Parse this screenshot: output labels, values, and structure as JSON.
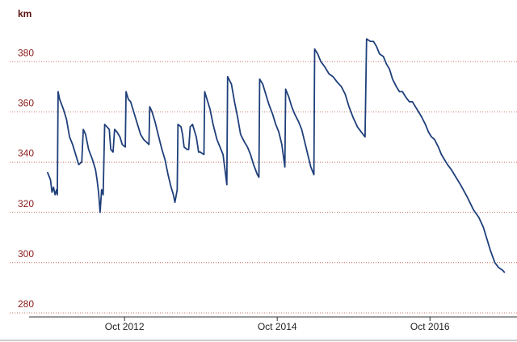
{
  "chart_data": {
    "type": "line",
    "y_label": "km",
    "color": "#1f3f7a",
    "grid": true,
    "xlim": [
      2011.5,
      2017.89
    ],
    "ylim": [
      280,
      390
    ],
    "xticks": [
      {
        "value": 2012.75,
        "label": "Oct 2012"
      },
      {
        "value": 2014.75,
        "label": "Oct 2014"
      },
      {
        "value": 2016.75,
        "label": "Oct 2016"
      }
    ],
    "yticks": [
      280,
      300,
      320,
      340,
      360,
      380
    ],
    "x": [
      2011.74,
      2011.78,
      2011.8,
      2011.82,
      2011.84,
      2011.86,
      2011.87,
      2011.88,
      2011.9,
      2011.95,
      2011.99,
      2012.03,
      2012.07,
      2012.12,
      2012.15,
      2012.19,
      2012.21,
      2012.24,
      2012.28,
      2012.33,
      2012.37,
      2012.39,
      2012.41,
      2012.43,
      2012.45,
      2012.47,
      2012.49,
      2012.52,
      2012.55,
      2012.57,
      2012.6,
      2012.62,
      2012.65,
      2012.69,
      2012.72,
      2012.76,
      2012.77,
      2012.8,
      2012.83,
      2012.88,
      2012.92,
      2012.96,
      2013.0,
      2013.07,
      2013.08,
      2013.11,
      2013.15,
      2013.19,
      2013.24,
      2013.28,
      2013.32,
      2013.36,
      2013.39,
      2013.41,
      2013.44,
      2013.45,
      2013.49,
      2013.51,
      2013.53,
      2013.57,
      2013.59,
      2013.61,
      2013.64,
      2013.66,
      2013.69,
      2013.72,
      2013.74,
      2013.79,
      2013.8,
      2013.83,
      2013.87,
      2013.91,
      2013.96,
      2014.0,
      2014.04,
      2014.07,
      2014.09,
      2014.1,
      2014.15,
      2014.19,
      2014.23,
      2014.27,
      2014.32,
      2014.36,
      2014.4,
      2014.44,
      2014.49,
      2014.51,
      2014.52,
      2014.56,
      2014.6,
      2014.64,
      2014.69,
      2014.73,
      2014.77,
      2014.81,
      2014.85,
      2014.86,
      2014.9,
      2014.94,
      2014.98,
      2015.03,
      2015.07,
      2015.11,
      2015.15,
      2015.19,
      2015.23,
      2015.24,
      2015.28,
      2015.32,
      2015.37,
      2015.43,
      2015.48,
      2015.53,
      2015.59,
      2015.64,
      2015.69,
      2015.74,
      2015.8,
      2015.85,
      2015.9,
      2015.92,
      2015.97,
      2016.01,
      2016.05,
      2016.09,
      2016.14,
      2016.18,
      2016.22,
      2016.26,
      2016.31,
      2016.35,
      2016.39,
      2016.43,
      2016.48,
      2016.52,
      2016.56,
      2016.6,
      2016.64,
      2016.69,
      2016.73,
      2016.77,
      2016.81,
      2016.86,
      2016.9,
      2016.94,
      2016.98,
      2017.03,
      2017.07,
      2017.15,
      2017.24,
      2017.32,
      2017.39,
      2017.45,
      2017.49,
      2017.54,
      2017.6,
      2017.65,
      2017.7,
      2017.73
    ],
    "values": [
      336,
      333,
      328,
      330,
      327,
      329,
      327,
      368,
      365,
      361,
      357,
      350,
      347,
      342,
      339,
      340,
      353,
      351,
      345,
      341,
      337,
      333,
      328,
      320,
      329,
      327,
      355,
      354,
      353,
      345,
      344,
      353,
      352,
      350,
      347,
      346,
      368,
      365,
      364,
      359,
      355,
      351,
      349,
      347,
      362,
      360,
      356,
      351,
      345,
      341,
      335,
      330,
      327,
      324,
      329,
      355,
      354,
      351,
      346,
      345,
      345,
      354,
      355,
      353,
      350,
      344,
      344,
      343,
      368,
      365,
      361,
      355,
      349,
      346,
      343,
      336,
      331,
      374,
      371,
      364,
      358,
      351,
      348,
      346,
      343,
      339,
      335,
      334,
      373,
      371,
      367,
      363,
      359,
      355,
      352,
      347,
      338,
      369,
      366,
      362,
      359,
      356,
      353,
      348,
      343,
      338,
      335,
      385,
      383,
      380,
      378,
      375,
      374,
      372,
      370,
      367,
      362,
      358,
      354,
      352,
      350,
      389,
      388,
      388,
      386,
      383,
      382,
      379,
      377,
      373,
      370,
      368,
      368,
      366,
      364,
      364,
      362,
      360,
      358,
      355,
      352,
      350,
      349,
      346,
      343,
      341,
      339,
      337,
      335,
      331,
      326,
      321,
      318,
      314,
      310,
      305,
      300,
      298,
      297,
      296
    ]
  }
}
